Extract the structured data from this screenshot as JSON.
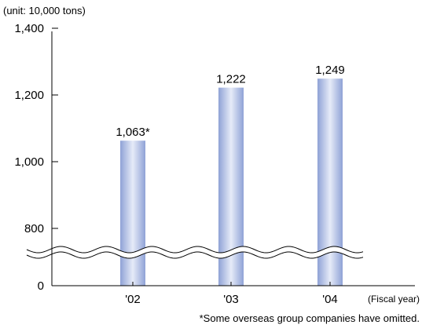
{
  "chart_data": {
    "type": "bar",
    "unit_label": "(unit: 10,000 tons)",
    "xlabel": "(Fiscal year)",
    "ylabel": "",
    "categories": [
      "'02",
      "'03",
      "'04"
    ],
    "values": [
      1063,
      1222,
      1249
    ],
    "data_labels": [
      "1,063*",
      "1,222",
      "1,249"
    ],
    "y_ticks": [
      {
        "value": 0,
        "label": "0"
      },
      {
        "value": 800,
        "label": "800"
      },
      {
        "value": 1000,
        "label": "1,000"
      },
      {
        "value": 1200,
        "label": "1,200"
      },
      {
        "value": 1400,
        "label": "1,400"
      }
    ],
    "axis_break": {
      "between": [
        0,
        800
      ]
    },
    "ylim": [
      0,
      1400
    ],
    "grid": false,
    "legend": "none",
    "footnote": "*Some overseas group companies have omitted.",
    "colors": {
      "bar_edge": "#8fa2d6",
      "bar_center": "#e6ebf8"
    }
  }
}
